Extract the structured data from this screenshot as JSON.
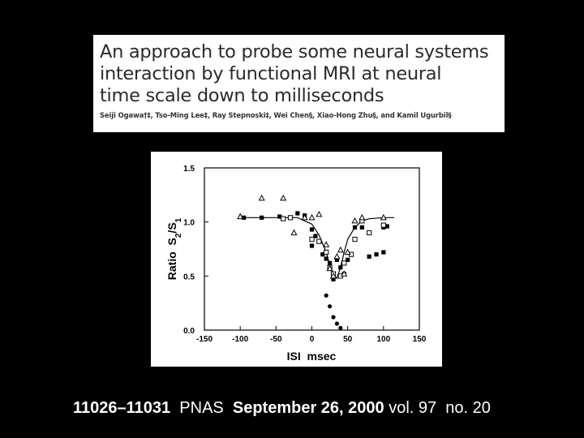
{
  "paper": {
    "title_lines": [
      "An approach to probe some neural systems",
      "interaction by functional MRI at neural",
      "time scale down to milliseconds"
    ],
    "authors": "Seiji Ogawa†‡, Tso-Ming Lee‡, Ray Stepnoski‡, Wei Chen§, Xiao-Hong Zhu§, and Kamil Ugurbil§"
  },
  "chart_data": {
    "type": "scatter",
    "xlabel": "ISI  msec",
    "ylabel": "Ratio  S2/S1",
    "xlim": [
      -150,
      150
    ],
    "ylim": [
      0.0,
      1.5
    ],
    "xticks": [
      "-150",
      "-100",
      "-50",
      "0",
      "50",
      "100",
      "150"
    ],
    "yticks": [
      "0.0",
      "0.5",
      "1.0",
      "1.5"
    ],
    "series": [
      {
        "marker": "filled-square",
        "points": [
          [
            -95,
            1.04
          ],
          [
            -70,
            1.04
          ],
          [
            -45,
            1.05
          ],
          [
            -20,
            1.08
          ],
          [
            -10,
            1.06
          ],
          [
            0,
            0.93
          ],
          [
            5,
            0.87
          ],
          [
            0,
            0.78
          ],
          [
            15,
            0.7
          ],
          [
            20,
            0.66
          ],
          [
            25,
            0.62
          ],
          [
            30,
            0.47
          ],
          [
            35,
            0.65
          ],
          [
            40,
            0.58
          ],
          [
            45,
            0.52
          ],
          [
            50,
            0.65
          ],
          [
            60,
            0.95
          ],
          [
            70,
            0.95
          ],
          [
            80,
            0.68
          ],
          [
            90,
            0.7
          ],
          [
            100,
            0.95
          ],
          [
            100,
            0.72
          ],
          [
            105,
            0.96
          ]
        ]
      },
      {
        "marker": "open-square",
        "points": [
          [
            -40,
            1.03
          ],
          [
            -30,
            1.04
          ],
          [
            0,
            0.84
          ],
          [
            10,
            0.82
          ],
          [
            20,
            0.72
          ],
          [
            25,
            0.58
          ],
          [
            30,
            0.52
          ],
          [
            40,
            0.5
          ],
          [
            45,
            0.62
          ],
          [
            55,
            0.7
          ],
          [
            60,
            0.84
          ],
          [
            70,
            1.01
          ],
          [
            80,
            0.9
          ],
          [
            100,
            0.97
          ]
        ]
      },
      {
        "marker": "open-triangle",
        "points": [
          [
            -100,
            1.05
          ],
          [
            -70,
            1.22
          ],
          [
            -40,
            1.22
          ],
          [
            -25,
            0.9
          ],
          [
            -10,
            1.04
          ],
          [
            0,
            1.04
          ],
          [
            10,
            1.07
          ],
          [
            20,
            0.79
          ],
          [
            25,
            0.57
          ],
          [
            30,
            0.5
          ],
          [
            35,
            0.68
          ],
          [
            40,
            0.74
          ],
          [
            45,
            0.52
          ],
          [
            50,
            0.72
          ],
          [
            60,
            1.01
          ],
          [
            70,
            1.04
          ],
          [
            100,
            1.04
          ]
        ]
      },
      {
        "marker": "filled-circle",
        "points": [
          [
            20,
            0.32
          ],
          [
            25,
            0.22
          ],
          [
            30,
            0.12
          ],
          [
            35,
            0.06
          ],
          [
            40,
            0.02
          ]
        ]
      }
    ],
    "fit_curve": [
      [
        -100,
        1.04
      ],
      [
        -50,
        1.04
      ],
      [
        -20,
        1.04
      ],
      [
        0,
        0.98
      ],
      [
        10,
        0.88
      ],
      [
        20,
        0.72
      ],
      [
        25,
        0.6
      ],
      [
        30,
        0.5
      ],
      [
        35,
        0.48
      ],
      [
        40,
        0.58
      ],
      [
        45,
        0.72
      ],
      [
        50,
        0.84
      ],
      [
        60,
        0.95
      ],
      [
        70,
        1.01
      ],
      [
        80,
        1.03
      ],
      [
        100,
        1.04
      ],
      [
        115,
        1.04
      ]
    ]
  },
  "citation": {
    "pages": "11026–11031",
    "journal": "PNAS",
    "date": "September 26, 2000",
    "volume": "vol. 97",
    "number": "no. 20"
  }
}
